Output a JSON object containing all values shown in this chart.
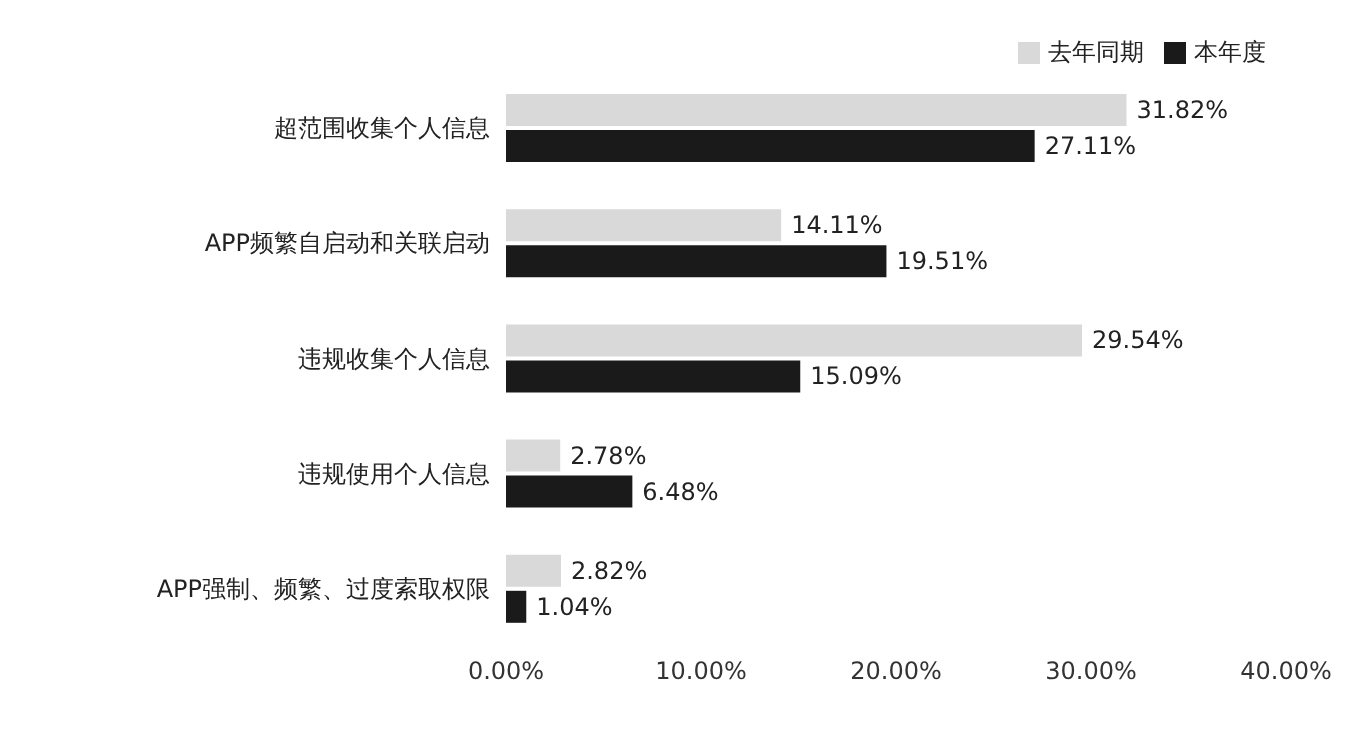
{
  "chart_data": {
    "type": "bar",
    "orientation": "horizontal",
    "categories": [
      "超范围收集个人信息",
      "APP频繁自启动和关联启动",
      "违规收集个人信息",
      "违规使用个人信息",
      "APP强制、频繁、过度索取权限"
    ],
    "series": [
      {
        "name": "去年同期",
        "color": "#d9d9d9",
        "values": [
          31.82,
          14.11,
          29.54,
          2.78,
          2.82
        ],
        "value_labels": [
          "31.82%",
          "14.11%",
          "29.54%",
          "2.78%",
          "2.82%"
        ]
      },
      {
        "name": "本年度",
        "color": "#1a1a1a",
        "values": [
          27.11,
          19.51,
          15.09,
          6.48,
          1.04
        ],
        "value_labels": [
          "27.11%",
          "19.51%",
          "15.09%",
          "6.48%",
          "1.04%"
        ]
      }
    ],
    "xlim": [
      0,
      40
    ],
    "xticks": [
      {
        "value": 0,
        "label": "0.00%"
      },
      {
        "value": 10,
        "label": "10.00%"
      },
      {
        "value": 20,
        "label": "20.00%"
      },
      {
        "value": 30,
        "label": "30.00%"
      },
      {
        "value": 40,
        "label": "40.00%"
      }
    ],
    "grid": false,
    "legend": "top right"
  }
}
